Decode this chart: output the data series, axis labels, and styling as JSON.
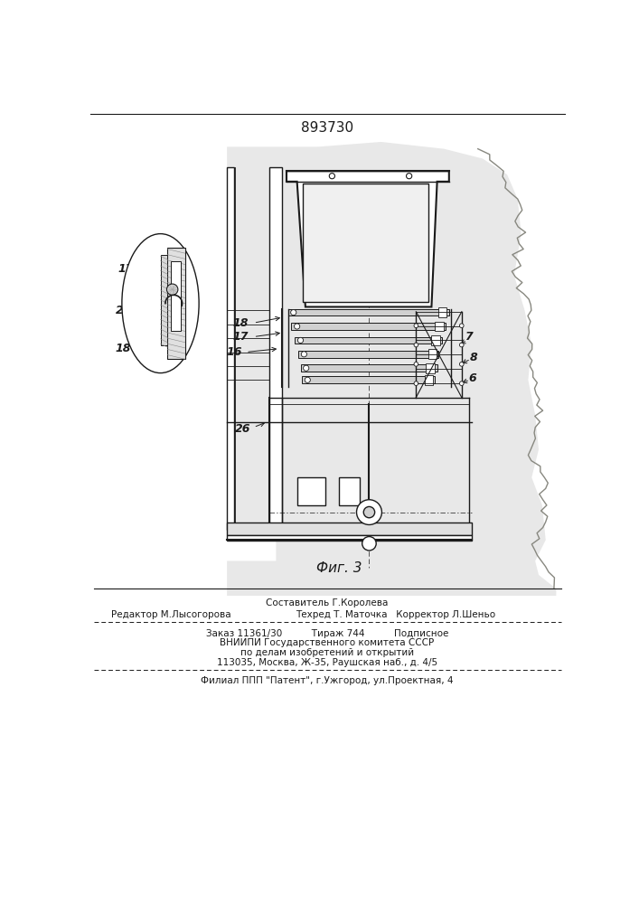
{
  "patent_number": "893730",
  "fig_label": "Фиг. 3",
  "bg_color": "#ffffff",
  "line_color": "#1a1a1a",
  "gray_bg": "#c8c8c8",
  "editor_line": "Редактор М.Лысогорова",
  "composer_line": "Составитель Г.Королева",
  "tech_line": "Техред Т. Маточка   Корректор Л.Шеньо",
  "order_line": "Заказ 11361/30          Тираж 744          Подписное",
  "vnipi_line1": "ВНИИПИ Государственного комитета СССР",
  "vnipi_line2": "по делам изобретений и открытий",
  "vnipi_line3": "113035, Москва, Ж-35, Раушская наб., д. 4/5",
  "filial_line": "Филиал ППП \"Патент\", г.Ужгород, ул.Проектная, 4"
}
